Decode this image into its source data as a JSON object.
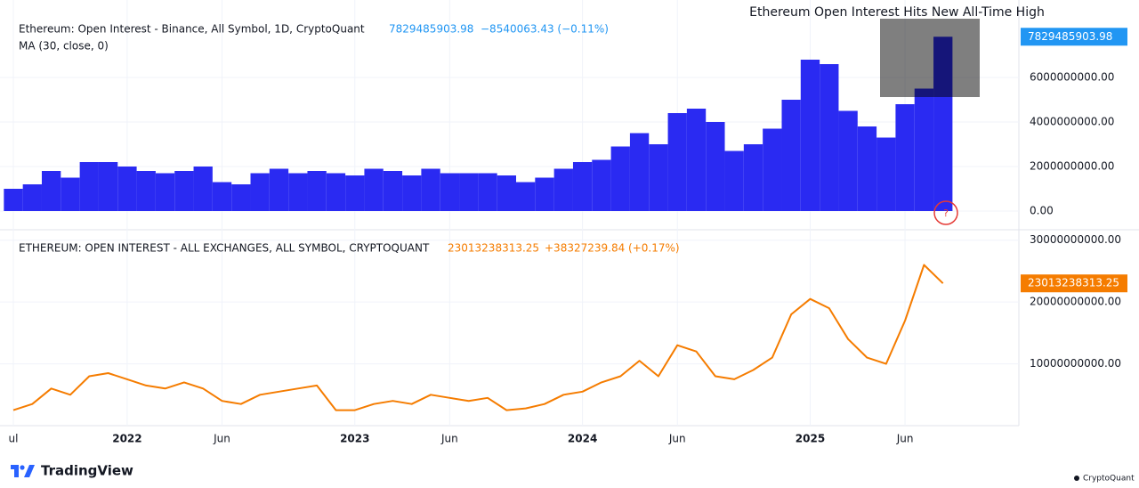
{
  "chart_data": [
    {
      "type": "bar",
      "title": "Ethereum Open Interest Hits New All-Time High",
      "legend": "Ethereum: Open Interest - Binance, All Symbol, 1D, CryptoQuant",
      "change": "−8540063.43 (−0.11%)",
      "indicator": "MA (30, close, 0)",
      "color": "#2a2af2",
      "label_color": "#2196f3",
      "x": [
        "2021-07",
        "2021-08",
        "2021-09",
        "2021-10",
        "2021-11",
        "2021-12",
        "2022-01",
        "2022-02",
        "2022-03",
        "2022-04",
        "2022-05",
        "2022-06",
        "2022-07",
        "2022-08",
        "2022-09",
        "2022-10",
        "2022-11",
        "2022-12",
        "2023-01",
        "2023-02",
        "2023-03",
        "2023-04",
        "2023-05",
        "2023-06",
        "2023-07",
        "2023-08",
        "2023-09",
        "2023-10",
        "2023-11",
        "2023-12",
        "2024-01",
        "2024-02",
        "2024-03",
        "2024-04",
        "2024-05",
        "2024-06",
        "2024-07",
        "2024-08",
        "2024-09",
        "2024-10",
        "2024-11",
        "2024-12",
        "2025-01",
        "2025-02",
        "2025-03",
        "2025-04",
        "2025-05",
        "2025-06",
        "2025-07",
        "2025-08"
      ],
      "values": [
        1000000000,
        1200000000,
        1800000000,
        1500000000,
        2200000000,
        2200000000,
        2000000000,
        1800000000,
        1700000000,
        1800000000,
        2000000000,
        1300000000,
        1200000000,
        1700000000,
        1900000000,
        1700000000,
        1800000000,
        1700000000,
        1600000000,
        1900000000,
        1800000000,
        1600000000,
        1900000000,
        1700000000,
        1700000000,
        1700000000,
        1600000000,
        1300000000,
        1500000000,
        1900000000,
        2200000000,
        2300000000,
        2900000000,
        3500000000,
        3000000000,
        4400000000,
        4600000000,
        4000000000,
        2700000000,
        3000000000,
        3700000000,
        5000000000,
        6800000000,
        6600000000,
        4500000000,
        3800000000,
        3300000000,
        4800000000,
        5500000000,
        7829485903.98
      ],
      "xlim": [
        "2021-07",
        "2025-12"
      ],
      "ylim": [
        -840000000,
        8760000000
      ],
      "yticks": [
        {
          "value": 0,
          "label": "0.00"
        },
        {
          "value": 2000000000,
          "label": "2000000000.00"
        },
        {
          "value": 4000000000,
          "label": "4000000000.00"
        },
        {
          "value": 6000000000,
          "label": "6000000000.00"
        }
      ],
      "grid": true,
      "marker": "?"
    },
    {
      "type": "line",
      "legend": "ETHEREUM: OPEN INTEREST - ALL EXCHANGES, ALL SYMBOL, CRYPTOQUANT",
      "change": "+38327239.84 (+0.17%)",
      "color": "#f57c00",
      "label_color": "#f57c00",
      "x": [
        "2021-07",
        "2021-08",
        "2021-09",
        "2021-10",
        "2021-11",
        "2021-12",
        "2022-01",
        "2022-02",
        "2022-03",
        "2022-04",
        "2022-05",
        "2022-06",
        "2022-07",
        "2022-08",
        "2022-09",
        "2022-10",
        "2022-11",
        "2022-12",
        "2023-01",
        "2023-02",
        "2023-03",
        "2023-04",
        "2023-05",
        "2023-06",
        "2023-07",
        "2023-08",
        "2023-09",
        "2023-10",
        "2023-11",
        "2023-12",
        "2024-01",
        "2024-02",
        "2024-03",
        "2024-04",
        "2024-05",
        "2024-06",
        "2024-07",
        "2024-08",
        "2024-09",
        "2024-10",
        "2024-11",
        "2024-12",
        "2025-01",
        "2025-02",
        "2025-03",
        "2025-04",
        "2025-05",
        "2025-06",
        "2025-07",
        "2025-08"
      ],
      "values": [
        2500000000,
        3500000000,
        6000000000,
        5000000000,
        8000000000,
        8500000000,
        7500000000,
        6500000000,
        6000000000,
        7000000000,
        6000000000,
        4000000000,
        3500000000,
        5000000000,
        5500000000,
        6000000000,
        6500000000,
        2500000000,
        2500000000,
        3500000000,
        4000000000,
        3500000000,
        5000000000,
        4500000000,
        4000000000,
        4500000000,
        2500000000,
        2800000000,
        3500000000,
        5000000000,
        5500000000,
        7000000000,
        8000000000,
        10500000000,
        8000000000,
        13000000000,
        12000000000,
        8000000000,
        7500000000,
        9000000000,
        11000000000,
        18000000000,
        20500000000,
        19000000000,
        14000000000,
        11000000000,
        10000000000,
        17000000000,
        26000000000,
        23013238313.25
      ],
      "xlim": [
        "2021-07",
        "2025-12"
      ],
      "ylim": [
        0,
        31400000000
      ],
      "yticks": [
        {
          "value": 10000000000,
          "label": "10000000000.00"
        },
        {
          "value": 20000000000,
          "label": "20000000000.00"
        },
        {
          "value": 30000000000,
          "label": "30000000000.00"
        }
      ],
      "xticks": [
        {
          "value": "2021-07",
          "label": "ul"
        },
        {
          "value": "2022-01",
          "label": "2022"
        },
        {
          "value": "2022-06",
          "label": "Jun"
        },
        {
          "value": "2023-01",
          "label": "2023"
        },
        {
          "value": "2023-06",
          "label": "Jun"
        },
        {
          "value": "2024-01",
          "label": "2024"
        },
        {
          "value": "2024-06",
          "label": "Jun"
        },
        {
          "value": "2025-01",
          "label": "2025"
        },
        {
          "value": "2025-06",
          "label": "Jun"
        }
      ],
      "grid": true
    }
  ],
  "branding": {
    "left": "TradingView",
    "right": "CryptoQuant"
  }
}
